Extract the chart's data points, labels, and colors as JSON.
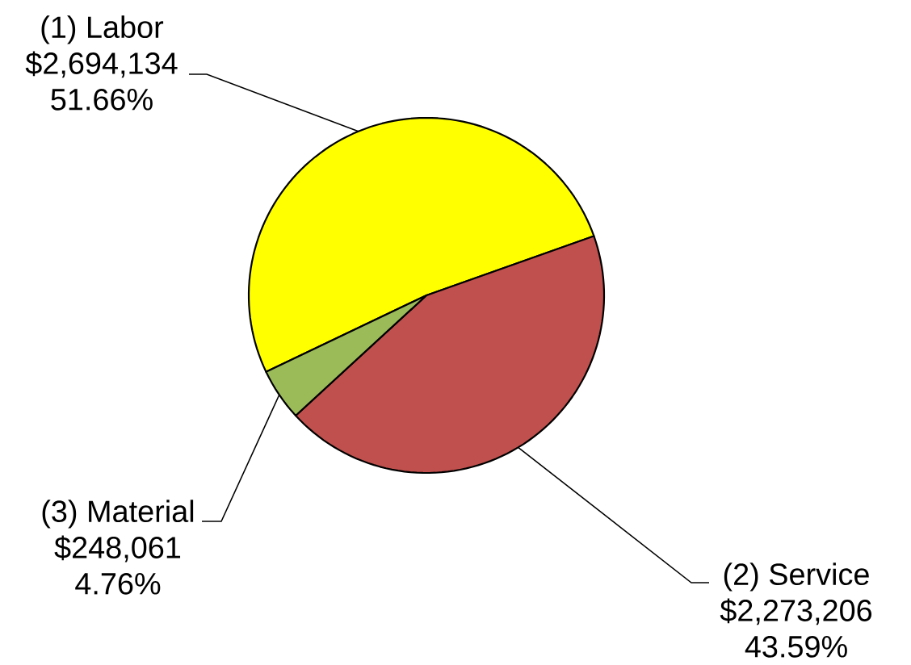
{
  "chart_data": {
    "type": "pie",
    "categories": [
      "(1) Labor",
      "(2) Service",
      "(3) Material"
    ],
    "values": [
      2694134,
      2273206,
      248061
    ],
    "colors": [
      "#ffff00",
      "#c0504d",
      "#9bbb59"
    ],
    "value_labels": [
      "$2,694,134",
      "$2,273,206",
      "$248,061"
    ],
    "annotations": [
      "51.66%",
      "43.59%",
      "4.76%"
    ]
  }
}
